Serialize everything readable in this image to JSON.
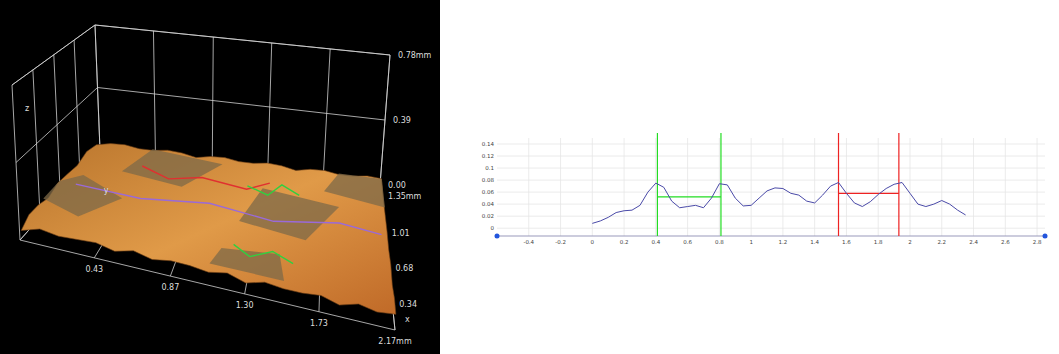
{
  "chart_data": [
    {
      "type": "surface3d",
      "x_label": "x",
      "y_label": "y",
      "z_label": "z",
      "xlim": [
        0,
        2.17
      ],
      "xticks": [
        0.43,
        0.87,
        {
          "value": 1.3,
          "label": "1.30"
        },
        1.73,
        {
          "value": 2.17,
          "label": "2.17mm"
        }
      ],
      "ylim": [
        0,
        1.35
      ],
      "yticks": [
        0.34,
        0.68,
        1.01,
        {
          "value": 1.35,
          "label": "1.35mm"
        }
      ],
      "zlim": [
        0,
        0.78
      ],
      "zticks": [
        {
          "value": 0,
          "label": "0.00"
        },
        0.39,
        {
          "value": 0.78,
          "label": "0.78mm"
        }
      ],
      "grid": true
    },
    {
      "type": "line",
      "x": [
        0,
        0.05,
        0.1,
        0.15,
        0.2,
        0.25,
        0.3,
        0.35,
        0.4,
        0.45,
        0.5,
        0.55,
        0.6,
        0.65,
        0.7,
        0.75,
        0.8,
        0.85,
        0.9,
        0.95,
        1,
        1.05,
        1.1,
        1.15,
        1.2,
        1.25,
        1.3,
        1.35,
        1.4,
        1.45,
        1.5,
        1.55,
        1.6,
        1.65,
        1.7,
        1.75,
        1.8,
        1.85,
        1.9,
        1.95,
        2,
        2.05,
        2.1,
        2.15,
        2.2,
        2.25,
        2.3,
        2.35
      ],
      "series": [
        {
          "color": "#4a4aa8",
          "values": [
            0.008,
            0.012,
            0.018,
            0.026,
            0.029,
            0.03,
            0.038,
            0.06,
            0.075,
            0.068,
            0.045,
            0.034,
            0.036,
            0.038,
            0.034,
            0.05,
            0.074,
            0.072,
            0.05,
            0.037,
            0.038,
            0.05,
            0.062,
            0.067,
            0.066,
            0.058,
            0.055,
            0.045,
            0.042,
            0.055,
            0.07,
            0.076,
            0.058,
            0.042,
            0.036,
            0.044,
            0.056,
            0.066,
            0.073,
            0.076,
            0.058,
            0.04,
            0.036,
            0.04,
            0.046,
            0.04,
            0.03,
            0.022
          ]
        }
      ],
      "spans": [
        {
          "x1": 0.41,
          "x2": 0.81,
          "y": 0.052,
          "color": "#22dd22"
        },
        {
          "x1": 1.55,
          "x2": 1.93,
          "y": 0.058,
          "color": "#ee2222"
        }
      ],
      "xlim": [
        -0.6,
        2.85
      ],
      "xticks": [
        -0.4,
        -0.2,
        0,
        0.2,
        0.4,
        0.6,
        0.8,
        1,
        1.2,
        1.4,
        1.6,
        1.8,
        2,
        2.2,
        2.4,
        2.6,
        2.8
      ],
      "ylim": [
        -0.013,
        0.15
      ],
      "yticks": [
        0,
        0.02,
        0.04,
        0.06,
        0.08,
        0.1,
        0.12,
        0.14
      ],
      "grid": true
    }
  ]
}
